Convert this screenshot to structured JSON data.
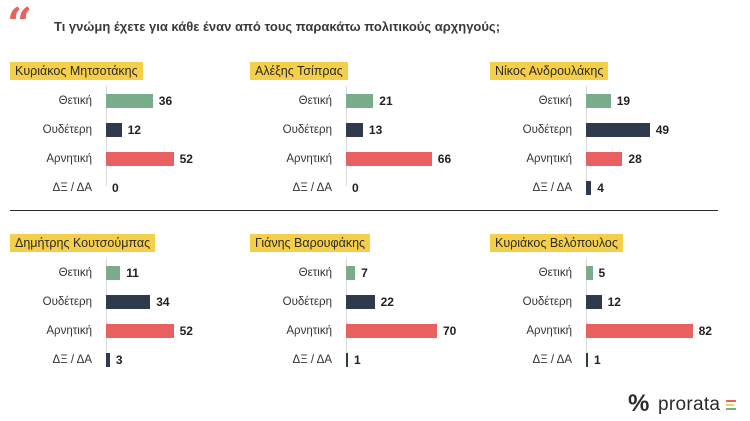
{
  "header": {
    "quote_mark": "“",
    "question": "Τι γνώμη έχετε για κάθε έναν από τους παρακάτω πολιτικούς αρχηγούς;"
  },
  "colors": {
    "positive": "#7aab8a",
    "neutral": "#2f3b4c",
    "negative": "#e96060",
    "dk": "#2f3b4c",
    "tag": "#f5cf4a"
  },
  "logo": {
    "symbol": "%",
    "text": "prorata"
  },
  "chart_data": [
    {
      "type": "bar",
      "title": "Κυριάκος Μητσοτάκης",
      "categories": [
        "Θετική",
        "Ουδέτερη",
        "Αρνητική",
        "ΔΞ / ΔΑ"
      ],
      "values": [
        36,
        12,
        52,
        0
      ],
      "xlim": [
        0,
        100
      ]
    },
    {
      "type": "bar",
      "title": "Αλέξης Τσίπρας",
      "categories": [
        "Θετική",
        "Ουδέτερη",
        "Αρνητική",
        "ΔΞ / ΔΑ"
      ],
      "values": [
        21,
        13,
        66,
        0
      ],
      "xlim": [
        0,
        100
      ]
    },
    {
      "type": "bar",
      "title": "Νίκος Ανδρουλάκης",
      "categories": [
        "Θετική",
        "Ουδέτερη",
        "Αρνητική",
        "ΔΞ / ΔΑ"
      ],
      "values": [
        19,
        49,
        28,
        4
      ],
      "xlim": [
        0,
        100
      ]
    },
    {
      "type": "bar",
      "title": "Δημήτρης Κουτσούμπας",
      "categories": [
        "Θετική",
        "Ουδέτερη",
        "Αρνητική",
        "ΔΞ / ΔΑ"
      ],
      "values": [
        11,
        34,
        52,
        3
      ],
      "xlim": [
        0,
        100
      ]
    },
    {
      "type": "bar",
      "title": "Γιάνης Βαρουφάκης",
      "categories": [
        "Θετική",
        "Ουδέτερη",
        "Αρνητική",
        "ΔΞ / ΔΑ"
      ],
      "values": [
        7,
        22,
        70,
        1
      ],
      "xlim": [
        0,
        100
      ]
    },
    {
      "type": "bar",
      "title": "Κυριάκος Βελόπουλος",
      "categories": [
        "Θετική",
        "Ουδέτερη",
        "Αρνητική",
        "ΔΞ / ΔΑ"
      ],
      "values": [
        5,
        12,
        82,
        1
      ],
      "xlim": [
        0,
        100
      ]
    }
  ]
}
